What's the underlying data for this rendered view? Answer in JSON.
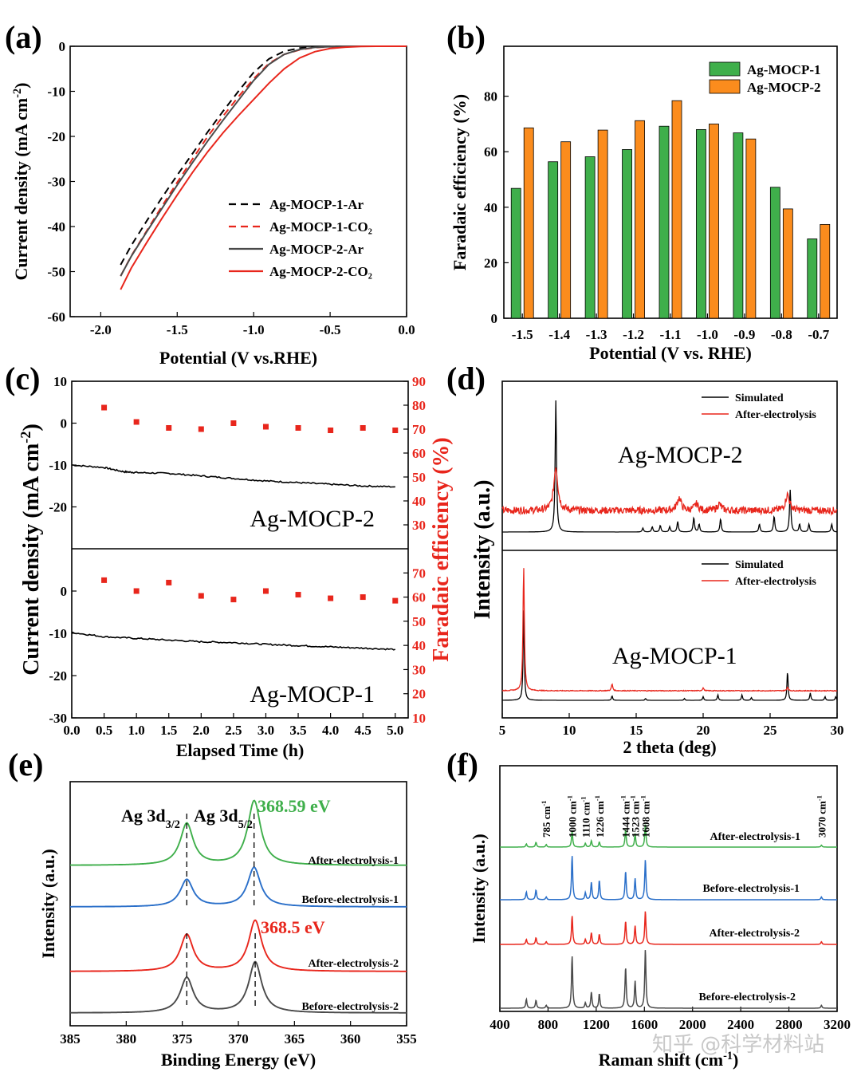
{
  "watermark": "知乎 @科学材料站",
  "chart_data": [
    {
      "panel": "(a)",
      "type": "line",
      "xlabel": "Potential (V vs.RHE)",
      "ylabel": "Current density (mA cm-2)",
      "xlim": [
        -2.2,
        0.0
      ],
      "ylim": [
        -60,
        0
      ],
      "xticks": [
        "-2.0",
        "-1.5",
        "-1.0",
        "-0.5",
        "0.0"
      ],
      "yticks": [
        "0",
        "-10",
        "-20",
        "-30",
        "-40",
        "-50",
        "-60"
      ],
      "legend": "right",
      "series": [
        {
          "name": "Ag-MOCP-1-Ar",
          "color": "#000000",
          "dash": true,
          "x": [
            -1.87,
            -1.8,
            -1.7,
            -1.6,
            -1.5,
            -1.4,
            -1.3,
            -1.2,
            -1.1,
            -1.0,
            -0.9,
            -0.8,
            -0.7,
            -0.6,
            -0.5,
            -0.4,
            -0.3,
            -0.2,
            -0.1,
            0.0
          ],
          "y": [
            -48.5,
            -44.2,
            -38.8,
            -33.6,
            -28.6,
            -23.8,
            -19.0,
            -14.4,
            -10.0,
            -5.8,
            -2.8,
            -1.1,
            -0.4,
            -0.15,
            -0.05,
            0,
            0,
            0,
            0,
            0
          ]
        },
        {
          "name": "Ag-MOCP-1-CO2",
          "color": "#e8261c",
          "dash": true,
          "x": [
            -1.87,
            -1.8,
            -1.7,
            -1.6,
            -1.5,
            -1.4,
            -1.3,
            -1.2,
            -1.1,
            -1.0,
            -0.9,
            -0.8,
            -0.7,
            -0.6,
            -0.5,
            -0.4,
            -0.3,
            -0.2,
            -0.1,
            0.0
          ],
          "y": [
            -51.0,
            -46.5,
            -41.0,
            -35.5,
            -30.2,
            -25.0,
            -20.0,
            -15.5,
            -11.2,
            -7.2,
            -3.8,
            -1.8,
            -0.8,
            -0.3,
            -0.1,
            0,
            0,
            0,
            0,
            0
          ]
        },
        {
          "name": "Ag-MOCP-2-Ar",
          "color": "#4a4a4a",
          "dash": false,
          "x": [
            -1.87,
            -1.8,
            -1.7,
            -1.6,
            -1.5,
            -1.4,
            -1.3,
            -1.2,
            -1.1,
            -1.0,
            -0.9,
            -0.8,
            -0.7,
            -0.6,
            -0.5,
            -0.4,
            -0.3,
            -0.2,
            -0.1,
            0.0
          ],
          "y": [
            -51.0,
            -46.6,
            -41.2,
            -36.0,
            -30.8,
            -25.8,
            -21.0,
            -16.4,
            -12.0,
            -7.6,
            -4.0,
            -1.8,
            -0.7,
            -0.25,
            -0.08,
            0,
            0,
            0,
            0,
            0
          ]
        },
        {
          "name": "Ag-MOCP-2-CO2",
          "color": "#e8261c",
          "dash": false,
          "x": [
            -1.87,
            -1.8,
            -1.7,
            -1.6,
            -1.5,
            -1.4,
            -1.3,
            -1.2,
            -1.1,
            -1.0,
            -0.9,
            -0.8,
            -0.7,
            -0.6,
            -0.5,
            -0.4,
            -0.3,
            -0.2,
            -0.1,
            0.0
          ],
          "y": [
            -54.0,
            -49.2,
            -43.6,
            -38.2,
            -33.0,
            -28.0,
            -23.4,
            -19.2,
            -15.4,
            -11.8,
            -8.2,
            -5.0,
            -2.6,
            -1.2,
            -0.5,
            -0.2,
            -0.05,
            0,
            0,
            0
          ]
        }
      ]
    },
    {
      "panel": "(b)",
      "type": "bar",
      "xlabel": "Potential (V vs. RHE)",
      "ylabel": "Faradaic efficiency (%)",
      "ylim": [
        0,
        98
      ],
      "yticks": [
        "0",
        "20",
        "40",
        "60",
        "80"
      ],
      "categories": [
        "-1.5",
        "-1.4",
        "-1.3",
        "-1.2",
        "-1.1",
        "-1.0",
        "-0.9",
        "-0.8",
        "-0.7"
      ],
      "legend": "top-right",
      "series": [
        {
          "name": "Ag-MOCP-1",
          "color": "#3faf4b",
          "values": [
            46.8,
            56.4,
            58.2,
            60.8,
            69.2,
            68.0,
            66.8,
            47.2,
            28.6
          ]
        },
        {
          "name": "Ag-MOCP-2",
          "color": "#fb8c1d",
          "values": [
            68.6,
            63.6,
            67.8,
            71.2,
            78.4,
            70.0,
            64.6,
            39.4,
            33.8
          ]
        }
      ]
    },
    {
      "panel": "(c)",
      "type": "scatter",
      "xlabel": "Elapsed Time (h)",
      "ylabel": "Current density (mA cm-2)",
      "ylabel2": "Faradaic efficiency (%)",
      "xlim": [
        0,
        5.2
      ],
      "xticks": [
        "0.0",
        "0.5",
        "1.0",
        "1.5",
        "2.0",
        "2.5",
        "3.0",
        "3.5",
        "4.0",
        "4.5",
        "5.0"
      ],
      "yticks_left_top": [
        "10",
        "0",
        "-10",
        "-20"
      ],
      "yticks_left_bottom": [
        "0",
        "-10",
        "-20",
        "-30"
      ],
      "yticks_right_top": [
        "90",
        "80",
        "70",
        "60",
        "50",
        "40",
        "30"
      ],
      "yticks_right_bottom": [
        "70",
        "60",
        "50",
        "40",
        "30",
        "20",
        "10"
      ],
      "subpanels": [
        {
          "name": "Ag-MOCP-2",
          "current_x": [
            0.0,
            0.5,
            0.8,
            1.0,
            1.5,
            2.0,
            2.5,
            3.0,
            3.5,
            4.0,
            4.5,
            5.0
          ],
          "current_y": [
            -10.0,
            -10.6,
            -11.6,
            -11.8,
            -12.0,
            -12.6,
            -13.2,
            -13.8,
            -14.2,
            -14.6,
            -15.0,
            -15.2
          ],
          "fe_x": [
            0.5,
            1.0,
            1.5,
            2.0,
            2.5,
            3.0,
            3.5,
            4.0,
            4.5,
            5.0
          ],
          "fe_y": [
            79,
            73,
            70.5,
            70,
            72.5,
            71,
            70.5,
            69.5,
            70.5,
            69.5
          ]
        },
        {
          "name": "Ag-MOCP-1",
          "current_x": [
            0.0,
            0.5,
            1.0,
            1.5,
            2.0,
            2.5,
            3.0,
            3.5,
            4.0,
            4.5,
            5.0
          ],
          "current_y": [
            -9.8,
            -10.8,
            -11.2,
            -11.6,
            -12.0,
            -12.2,
            -12.6,
            -12.9,
            -13.2,
            -13.5,
            -13.8
          ],
          "fe_x": [
            0.5,
            1.0,
            1.5,
            2.0,
            2.5,
            3.0,
            3.5,
            4.0,
            4.5,
            5.0
          ],
          "fe_y": [
            67,
            62.5,
            66,
            60.5,
            59,
            62.5,
            61,
            59.5,
            60,
            58.5
          ]
        }
      ]
    },
    {
      "panel": "(d)",
      "type": "line",
      "xlabel": "2 theta (deg)",
      "ylabel": "Intensity (a.u.)",
      "xlim": [
        5,
        30
      ],
      "xticks": [
        "5",
        "10",
        "15",
        "20",
        "25",
        "30"
      ],
      "subpanels": [
        {
          "name": "Ag-MOCP-2",
          "legend": [
            "Simulated",
            "After-electrolysis"
          ],
          "sim_peaks": [
            [
              9.0,
              1.0
            ],
            [
              15.5,
              0.03
            ],
            [
              16.2,
              0.04
            ],
            [
              16.8,
              0.05
            ],
            [
              17.5,
              0.04
            ],
            [
              18.1,
              0.08
            ],
            [
              19.3,
              0.11
            ],
            [
              19.7,
              0.06
            ],
            [
              21.3,
              0.1
            ],
            [
              24.2,
              0.06
            ],
            [
              25.3,
              0.12
            ],
            [
              26.5,
              0.32
            ],
            [
              27.2,
              0.06
            ],
            [
              27.9,
              0.06
            ],
            [
              29.6,
              0.06
            ]
          ],
          "exp_peaks": [
            [
              9.0,
              0.55
            ],
            [
              18.2,
              0.16
            ],
            [
              19.5,
              0.08
            ],
            [
              21.2,
              0.08
            ],
            [
              26.3,
              0.2
            ]
          ]
        },
        {
          "name": "Ag-MOCP-1",
          "legend": [
            "Simulated",
            "After-electrolysis"
          ],
          "sim_peaks": [
            [
              6.6,
              1.0
            ],
            [
              13.2,
              0.05
            ],
            [
              15.7,
              0.02
            ],
            [
              18.6,
              0.02
            ],
            [
              20.0,
              0.04
            ],
            [
              21.1,
              0.06
            ],
            [
              22.9,
              0.06
            ],
            [
              23.6,
              0.03
            ],
            [
              26.3,
              0.32
            ],
            [
              28.0,
              0.08
            ],
            [
              29.1,
              0.04
            ],
            [
              29.9,
              0.04
            ]
          ],
          "exp_peaks": [
            [
              6.6,
              1.3
            ],
            [
              13.2,
              0.07
            ],
            [
              20.0,
              0.03
            ],
            [
              26.3,
              0.04
            ]
          ]
        }
      ]
    },
    {
      "panel": "(e)",
      "type": "line",
      "xlabel": "Binding Energy (eV)",
      "ylabel": "Intensity (a.u.)",
      "xlim": [
        385,
        355
      ],
      "xticks": [
        "385",
        "380",
        "375",
        "370",
        "365",
        "360",
        "355"
      ],
      "peak_labels": [
        "Ag 3d3/2",
        "Ag 3d5/2"
      ],
      "annotations": [
        {
          "text": "368.59 eV",
          "color": "#3faf4b"
        },
        {
          "text": "368.5 eV",
          "color": "#e8261c"
        }
      ],
      "series": [
        {
          "name": "After-electrolysis-1",
          "color": "#3faf4b",
          "peaks": [
            [
              374.6,
              0.55
            ],
            [
              368.59,
              0.85
            ]
          ]
        },
        {
          "name": "Before-electrolysis-1",
          "color": "#2a6fc9",
          "peaks": [
            [
              374.6,
              0.4
            ],
            [
              368.6,
              0.58
            ]
          ]
        },
        {
          "name": "After-electrolysis-2",
          "color": "#e8261c",
          "peaks": [
            [
              374.6,
              0.42
            ],
            [
              368.5,
              0.58
            ]
          ]
        },
        {
          "name": "Before-electrolysis-2",
          "color": "#4a4a4a",
          "peaks": [
            [
              374.6,
              0.4
            ],
            [
              368.5,
              0.58
            ]
          ]
        }
      ]
    },
    {
      "panel": "(f)",
      "type": "line",
      "xlabel": "Raman shift (cm-1)",
      "ylabel": "Intensity (a.u.)",
      "xlim": [
        400,
        3200
      ],
      "xticks": [
        "400",
        "800",
        "1200",
        "1600",
        "2000",
        "2400",
        "2800",
        "3200"
      ],
      "band_labels": [
        "785 cm-1",
        "1000 cm-1",
        "1110 cm-1",
        "1226 cm-1",
        "1444 cm-1",
        "1523 cm-1",
        "1608 cm-1",
        "3070 cm-1"
      ],
      "series": [
        {
          "name": "After-electrolysis-1",
          "color": "#3faf4b",
          "peaks": [
            [
              620,
              0.1
            ],
            [
              700,
              0.15
            ],
            [
              785,
              0.08
            ],
            [
              1000,
              0.5
            ],
            [
              1110,
              0.12
            ],
            [
              1160,
              0.2
            ],
            [
              1226,
              0.16
            ],
            [
              1444,
              0.55
            ],
            [
              1523,
              0.42
            ],
            [
              1608,
              0.72
            ],
            [
              3070,
              0.06
            ]
          ]
        },
        {
          "name": "Before-electrolysis-1",
          "color": "#2a6fc9",
          "peaks": [
            [
              620,
              0.22
            ],
            [
              700,
              0.28
            ],
            [
              785,
              0.08
            ],
            [
              1000,
              1.25
            ],
            [
              1110,
              0.2
            ],
            [
              1160,
              0.5
            ],
            [
              1226,
              0.55
            ],
            [
              1444,
              0.82
            ],
            [
              1523,
              0.6
            ],
            [
              1608,
              1.15
            ],
            [
              3070,
              0.08
            ]
          ]
        },
        {
          "name": "After-electrolysis-2",
          "color": "#e8261c",
          "peaks": [
            [
              620,
              0.15
            ],
            [
              700,
              0.2
            ],
            [
              785,
              0.08
            ],
            [
              1000,
              0.85
            ],
            [
              1110,
              0.15
            ],
            [
              1160,
              0.35
            ],
            [
              1226,
              0.3
            ],
            [
              1444,
              0.7
            ],
            [
              1523,
              0.55
            ],
            [
              1608,
              1.0
            ],
            [
              3070,
              0.08
            ]
          ]
        },
        {
          "name": "Before-electrolysis-2",
          "color": "#4a4a4a",
          "peaks": [
            [
              620,
              0.25
            ],
            [
              700,
              0.22
            ],
            [
              785,
              0.08
            ],
            [
              1000,
              1.45
            ],
            [
              1110,
              0.15
            ],
            [
              1160,
              0.45
            ],
            [
              1226,
              0.4
            ],
            [
              1444,
              1.15
            ],
            [
              1523,
              0.75
            ],
            [
              1608,
              1.65
            ],
            [
              3070,
              0.08
            ]
          ]
        }
      ]
    }
  ]
}
